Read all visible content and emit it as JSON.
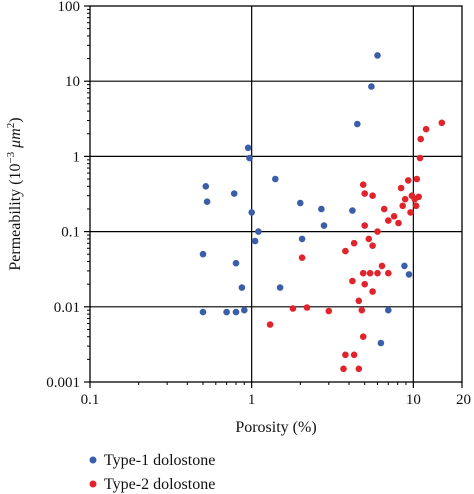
{
  "chart_data": {
    "type": "scatter",
    "xlabel": "Porosity (%)",
    "ylabel_parts": {
      "prefix": "Permeability (10",
      "exponent": "−3",
      "unit": " μm",
      "unit_exponent": "2",
      "suffix": ")"
    },
    "x_scale": "log",
    "y_scale": "log",
    "xlim": [
      0.1,
      20
    ],
    "ylim": [
      0.001,
      100
    ],
    "x_ticks": [
      {
        "value": 0.1,
        "label": "0.1"
      },
      {
        "value": 1,
        "label": "1"
      },
      {
        "value": 10,
        "label": "10"
      },
      {
        "value": 20,
        "label": "20"
      }
    ],
    "y_ticks": [
      {
        "value": 100,
        "label": "100"
      },
      {
        "value": 10,
        "label": "10"
      },
      {
        "value": 1,
        "label": "1"
      },
      {
        "value": 0.1,
        "label": "0.1"
      },
      {
        "value": 0.01,
        "label": "0.01"
      },
      {
        "value": 0.001,
        "label": "0.001"
      }
    ],
    "grid_major_x": [
      1,
      10
    ],
    "grid_major_y": [
      0.01,
      0.1,
      1,
      10
    ],
    "legend_position": "bottom-left",
    "series": [
      {
        "name": "Type-1 dolostone",
        "color": "#3a5fa8",
        "points": [
          [
            0.5,
            0.0085
          ],
          [
            0.7,
            0.0085
          ],
          [
            0.8,
            0.0085
          ],
          [
            0.9,
            0.009
          ],
          [
            0.5,
            0.05
          ],
          [
            0.8,
            0.038
          ],
          [
            0.87,
            0.018
          ],
          [
            0.52,
            0.4
          ],
          [
            0.53,
            0.25
          ],
          [
            0.78,
            0.32
          ],
          [
            0.95,
            1.3
          ],
          [
            0.97,
            0.95
          ],
          [
            1.0,
            0.18
          ],
          [
            1.1,
            0.1
          ],
          [
            1.05,
            0.075
          ],
          [
            1.4,
            0.5
          ],
          [
            1.5,
            0.018
          ],
          [
            2.0,
            0.24
          ],
          [
            2.05,
            0.08
          ],
          [
            2.7,
            0.2
          ],
          [
            2.8,
            0.12
          ],
          [
            4.2,
            0.19
          ],
          [
            4.5,
            2.7
          ],
          [
            5.5,
            8.5
          ],
          [
            6.0,
            22
          ],
          [
            6.3,
            0.0033
          ],
          [
            7.0,
            0.009
          ],
          [
            8.8,
            0.035
          ],
          [
            9.4,
            0.027
          ]
        ]
      },
      {
        "name": "Type-2 dolostone",
        "color": "#e1242c",
        "points": [
          [
            1.3,
            0.0058
          ],
          [
            1.8,
            0.0095
          ],
          [
            2.2,
            0.0098
          ],
          [
            3.0,
            0.0088
          ],
          [
            2.05,
            0.045
          ],
          [
            3.7,
            0.0015
          ],
          [
            3.8,
            0.0023
          ],
          [
            4.3,
            0.0023
          ],
          [
            4.6,
            0.0015
          ],
          [
            4.9,
            0.004
          ],
          [
            4.2,
            0.022
          ],
          [
            4.6,
            0.012
          ],
          [
            4.8,
            0.009
          ],
          [
            4.9,
            0.028
          ],
          [
            5.0,
            0.02
          ],
          [
            5.4,
            0.028
          ],
          [
            5.6,
            0.016
          ],
          [
            6.0,
            0.028
          ],
          [
            6.4,
            0.035
          ],
          [
            7.0,
            0.028
          ],
          [
            3.8,
            0.055
          ],
          [
            4.3,
            0.07
          ],
          [
            5.0,
            0.12
          ],
          [
            5.3,
            0.08
          ],
          [
            5.6,
            0.065
          ],
          [
            6.0,
            0.1
          ],
          [
            4.9,
            0.42
          ],
          [
            5.0,
            0.32
          ],
          [
            5.6,
            0.3
          ],
          [
            6.6,
            0.2
          ],
          [
            7.0,
            0.14
          ],
          [
            7.6,
            0.16
          ],
          [
            8.1,
            0.13
          ],
          [
            8.4,
            0.38
          ],
          [
            8.6,
            0.22
          ],
          [
            8.9,
            0.27
          ],
          [
            9.3,
            0.48
          ],
          [
            9.6,
            0.18
          ],
          [
            9.8,
            0.3
          ],
          [
            10.2,
            0.27
          ],
          [
            10.4,
            0.22
          ],
          [
            10.5,
            0.5
          ],
          [
            10.8,
            0.29
          ],
          [
            11.0,
            0.95
          ],
          [
            11.1,
            1.7
          ],
          [
            12.0,
            2.3
          ],
          [
            15.0,
            2.8
          ]
        ]
      }
    ]
  }
}
